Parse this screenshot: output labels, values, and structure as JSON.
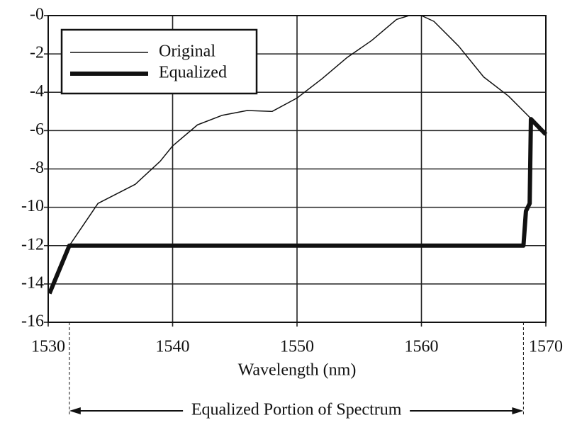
{
  "chart_data": {
    "type": "line",
    "xlabel": "Wavelength (nm)",
    "xlim": [
      1530,
      1570
    ],
    "xticks": [
      1530,
      1540,
      1550,
      1560,
      1570
    ],
    "ylim": [
      -16,
      0
    ],
    "yticks": [
      {
        "value": 0,
        "label": "-0"
      },
      -2,
      -4,
      -6,
      -8,
      -10,
      -12,
      -14,
      -16
    ],
    "grid": true,
    "legend": "upper left",
    "series": [
      {
        "name": "Original",
        "color": "#111111",
        "width": 1.5,
        "x": [
          1531.7,
          1534,
          1537,
          1539,
          1540,
          1542,
          1544,
          1546,
          1548,
          1550,
          1552,
          1554,
          1556,
          1558,
          1559,
          1560,
          1561,
          1563,
          1565,
          1567,
          1569,
          1570
        ],
        "values": [
          -12,
          -9.8,
          -8.8,
          -7.6,
          -6.8,
          -5.7,
          -5.2,
          -4.95,
          -5.0,
          -4.3,
          -3.3,
          -2.2,
          -1.3,
          -0.2,
          0,
          0,
          -0.3,
          -1.6,
          -3.2,
          -4.2,
          -5.5,
          -6.2
        ]
      },
      {
        "name": "Equalized",
        "color": "#111111",
        "width": 6,
        "x": [
          1530.1,
          1531.7,
          1568.2,
          1568.4,
          1568.7,
          1568.8,
          1570
        ],
        "values": [
          -14.5,
          -12,
          -12,
          -10.2,
          -9.8,
          -5.4,
          -6.2
        ]
      }
    ],
    "annotation": {
      "text": "Equalized Portion of Spectrum",
      "x": [
        1531.7,
        1568.2
      ]
    }
  }
}
